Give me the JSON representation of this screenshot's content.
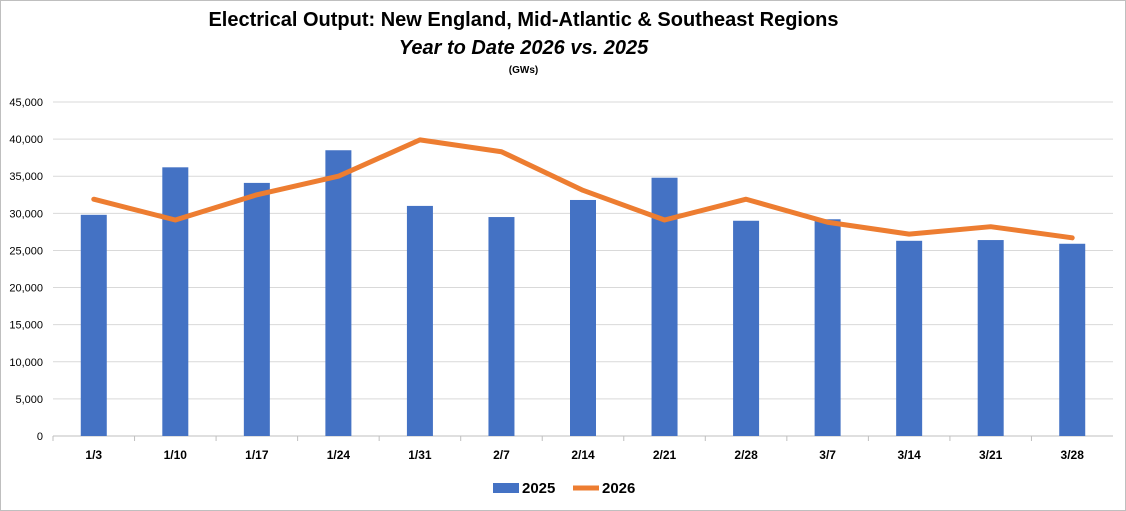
{
  "chart_data": {
    "type": "bar",
    "title": "Electrical Output:  New England, Mid-Atlantic & Southeast Regions",
    "subtitle": "Year to Date 2026 vs. 2025",
    "unit": "(GWs)",
    "categories": [
      "1/3",
      "1/10",
      "1/17",
      "1/24",
      "1/31",
      "2/7",
      "2/14",
      "2/21",
      "2/28",
      "3/7",
      "3/14",
      "3/21",
      "3/28"
    ],
    "series": [
      {
        "name": "2025",
        "type": "bar",
        "color": "#4472C4",
        "values": [
          29800,
          36200,
          34100,
          38500,
          31000,
          29500,
          31800,
          34800,
          29000,
          29200,
          26300,
          26400,
          25900
        ]
      },
      {
        "name": "2026",
        "type": "line",
        "color": "#ED7D31",
        "values": [
          31900,
          29100,
          32500,
          35000,
          39900,
          38300,
          33100,
          29100,
          31900,
          28800,
          27200,
          28200,
          26700
        ]
      }
    ],
    "ylim": [
      0,
      45000
    ],
    "yticks": [
      "0",
      "5,000",
      "10,000",
      "15,000",
      "20,000",
      "25,000",
      "30,000",
      "35,000",
      "40,000",
      "45,000"
    ],
    "grid": true,
    "legend": "bottom"
  }
}
